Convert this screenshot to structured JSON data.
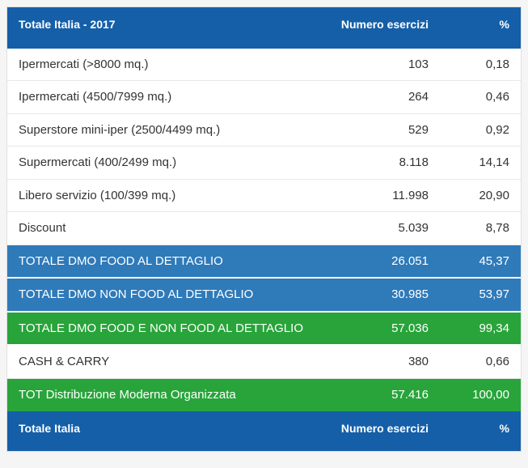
{
  "colors": {
    "header_bg": "#155fa8",
    "header_fg": "#ffffff",
    "row_fg": "#333333",
    "row_border": "#e8e8e8",
    "total_blue_bg": "#2f7ab9",
    "total_green_bg": "#28a43a",
    "total_fg": "#ffffff",
    "page_bg": "#f5f5f5"
  },
  "header": {
    "title": "Totale Italia - 2017",
    "col_num": "Numero esercizi",
    "col_pct": "%"
  },
  "rows": [
    {
      "kind": "data",
      "label": "Ipermercati (>8000 mq.)",
      "num": "103",
      "pct": "0,18"
    },
    {
      "kind": "data",
      "label": "Ipermercati (4500/7999 mq.)",
      "num": "264",
      "pct": "0,46"
    },
    {
      "kind": "data",
      "label": "Superstore mini-iper (2500/4499 mq.)",
      "num": "529",
      "pct": "0,92"
    },
    {
      "kind": "data",
      "label": "Supermercati (400/2499 mq.)",
      "num": "8.118",
      "pct": "14,14"
    },
    {
      "kind": "data",
      "label": "Libero servizio (100/399 mq.)",
      "num": "11.998",
      "pct": "20,90"
    },
    {
      "kind": "data",
      "label": "Discount",
      "num": "5.039",
      "pct": "8,78"
    },
    {
      "kind": "blue",
      "label": "TOTALE DMO FOOD AL DETTAGLIO",
      "num": "26.051",
      "pct": "45,37"
    },
    {
      "kind": "blue",
      "label": "TOTALE DMO NON FOOD AL DETTAGLIO",
      "num": "30.985",
      "pct": "53,97"
    },
    {
      "kind": "green",
      "label": "TOTALE DMO FOOD E NON FOOD AL DETTAGLIO",
      "num": "57.036",
      "pct": "99,34"
    },
    {
      "kind": "data",
      "label": "CASH & CARRY",
      "num": "380",
      "pct": "0,66"
    },
    {
      "kind": "green",
      "label": "TOT Distribuzione Moderna Organizzata",
      "num": "57.416",
      "pct": "100,00"
    }
  ],
  "footer": {
    "title": "Totale Italia",
    "col_num": "Numero esercizi",
    "col_pct": "%"
  }
}
